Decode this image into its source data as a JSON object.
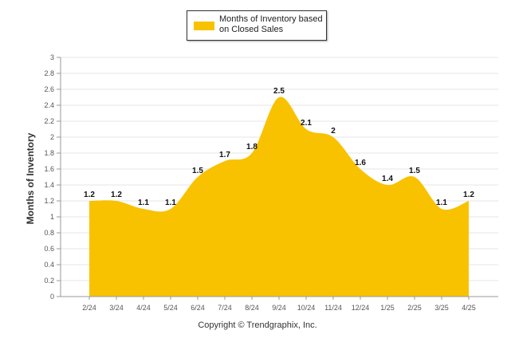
{
  "legend": {
    "label": "Months of Inventory based on Closed Sales",
    "color": "#F8C200"
  },
  "copyright": "Copyright © Trendgraphix, Inc.",
  "chart_data": {
    "type": "area",
    "categories": [
      "2/24",
      "3/24",
      "4/24",
      "5/24",
      "6/24",
      "7/24",
      "8/24",
      "9/24",
      "10/24",
      "11/24",
      "12/24",
      "1/25",
      "2/25",
      "3/25",
      "4/25"
    ],
    "series": [
      {
        "name": "Months of Inventory based on Closed Sales",
        "values": [
          1.2,
          1.2,
          1.1,
          1.1,
          1.5,
          1.7,
          1.8,
          2.5,
          2.1,
          2,
          1.6,
          1.4,
          1.5,
          1.1,
          1.2
        ]
      }
    ],
    "data_labels": [
      "1.2",
      "1.2",
      "1.1",
      "1.1",
      "1.5",
      "1.7",
      "1.8",
      "2.5",
      "2.1",
      "2",
      "1.6",
      "1.4",
      "1.5",
      "1.1",
      "1.2"
    ],
    "ylabel": "Months of Inventory",
    "xlabel": "",
    "ylim": [
      0,
      3
    ],
    "yticks": [
      "0",
      "0.2",
      "0.4",
      "0.6",
      "0.8",
      "1",
      "1.2",
      "1.4",
      "1.6",
      "1.8",
      "2",
      "2.2",
      "2.4",
      "2.6",
      "2.8",
      "3"
    ],
    "grid": true,
    "legend_position": "top-center",
    "fill_color": "#F8C200"
  }
}
